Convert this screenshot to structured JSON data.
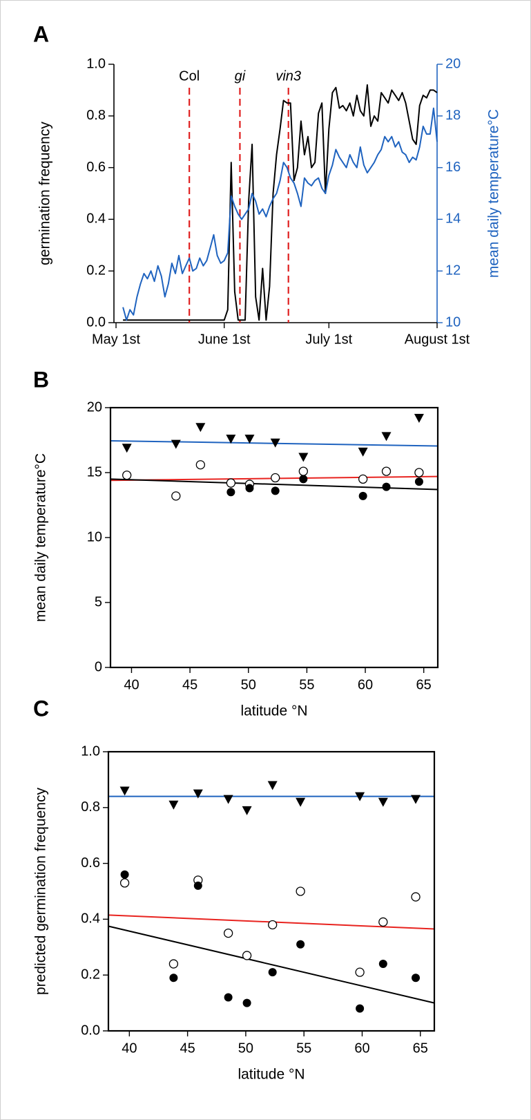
{
  "chart_data": [
    {
      "type": "line",
      "panel": "A",
      "ylabel": "germination frequency",
      "y2label": "mean daily temperature°C",
      "x": [
        2,
        3,
        4,
        5,
        6,
        7,
        8,
        9,
        10,
        11,
        12,
        13,
        14,
        15,
        16,
        17,
        18,
        19,
        20,
        21,
        22,
        23,
        24,
        25,
        26,
        27,
        28,
        29,
        30,
        31,
        32,
        33,
        34,
        35,
        36,
        37,
        38,
        39,
        40,
        41,
        42,
        43,
        44,
        45,
        46,
        47,
        48,
        49,
        50,
        51,
        52,
        53,
        54,
        55,
        56,
        57,
        58,
        59,
        60,
        61,
        62,
        63,
        64,
        65,
        66,
        67,
        68,
        69,
        70,
        71,
        72,
        73,
        74,
        75,
        76,
        77,
        78,
        79,
        80,
        81,
        82,
        83,
        84,
        85,
        86,
        87,
        88,
        89,
        90,
        91,
        92
      ],
      "xlim": [
        -0.6,
        92
      ],
      "xticks": [
        {
          "value": 0,
          "label": "May 1st"
        },
        {
          "value": 31,
          "label": "June 1st"
        },
        {
          "value": 61,
          "label": "July 1st"
        },
        {
          "value": 92,
          "label": "August 1st"
        }
      ],
      "ylim": [
        0,
        1
      ],
      "yticks": [
        {
          "value": 0,
          "label": "0.0"
        },
        {
          "value": 0.2,
          "label": "0.2"
        },
        {
          "value": 0.4,
          "label": "0.4"
        },
        {
          "value": 0.6,
          "label": "0.6"
        },
        {
          "value": 0.8,
          "label": "0.8"
        },
        {
          "value": 1,
          "label": "1.0"
        }
      ],
      "y2lim": [
        10,
        20
      ],
      "y2ticks": [
        10,
        12,
        14,
        16,
        18,
        20
      ],
      "series": [
        {
          "color": "#000000",
          "values": [
            0.01,
            0.01,
            0.01,
            0.01,
            0.01,
            0.01,
            0.01,
            0.01,
            0.01,
            0.01,
            0.01,
            0.01,
            0.01,
            0.01,
            0.01,
            0.01,
            0.01,
            0.01,
            0.01,
            0.01,
            0.01,
            0.01,
            0.01,
            0.01,
            0.01,
            0.01,
            0.01,
            0.01,
            0.01,
            0.01,
            0.05,
            0.62,
            0.12,
            0.01,
            0.01,
            0.01,
            0.47,
            0.69,
            0.1,
            0.01,
            0.21,
            0.01,
            0.14,
            0.5,
            0.65,
            0.75,
            0.86,
            0.85,
            0.85,
            0.55,
            0.6,
            0.78,
            0.65,
            0.72,
            0.6,
            0.62,
            0.81,
            0.85,
            0.5,
            0.75,
            0.89,
            0.91,
            0.83,
            0.84,
            0.82,
            0.85,
            0.8,
            0.88,
            0.82,
            0.8,
            0.92,
            0.76,
            0.8,
            0.78,
            0.89,
            0.87,
            0.85,
            0.9,
            0.88,
            0.86,
            0.89,
            0.85,
            0.78,
            0.71,
            0.69,
            0.84,
            0.88,
            0.87,
            0.9,
            0.9,
            0.89
          ]
        },
        {
          "color": "#1f63bf",
          "axis": "y2",
          "values": [
            10.6,
            10.1,
            10.5,
            10.3,
            11.0,
            11.5,
            11.9,
            11.7,
            12.0,
            11.6,
            12.2,
            11.8,
            11.0,
            11.5,
            12.3,
            11.9,
            12.6,
            11.9,
            12.2,
            12.5,
            12.0,
            12.1,
            12.5,
            12.2,
            12.4,
            12.9,
            13.4,
            12.6,
            12.3,
            12.4,
            12.7,
            14.9,
            14.5,
            14.2,
            14.0,
            14.2,
            14.4,
            15.0,
            14.7,
            14.2,
            14.4,
            14.1,
            14.5,
            14.8,
            15.0,
            15.5,
            16.2,
            16.0,
            15.6,
            15.4,
            15.0,
            14.5,
            15.6,
            15.4,
            15.3,
            15.5,
            15.6,
            15.2,
            15.0,
            15.7,
            16.1,
            16.7,
            16.4,
            16.2,
            16.0,
            16.5,
            16.2,
            16.0,
            16.8,
            16.1,
            15.8,
            16.0,
            16.2,
            16.5,
            16.7,
            17.2,
            17.0,
            17.2,
            16.8,
            17.0,
            16.6,
            16.5,
            16.2,
            16.4,
            16.3,
            16.8,
            17.6,
            17.3,
            17.3,
            18.3,
            17.0
          ]
        }
      ],
      "annotation_color": "#e02020",
      "annotations": [
        {
          "label": "Col",
          "x": 21
        },
        {
          "label": "gi",
          "x": 35.5,
          "style": "italic"
        },
        {
          "label": "vin3",
          "x": 49.4,
          "style": "italic"
        }
      ]
    },
    {
      "type": "scatter",
      "panel": "B",
      "xlabel": "latitude °N",
      "ylabel": "mean daily temperature°C",
      "x": [
        39.6,
        43.8,
        45.9,
        48.5,
        50.1,
        52.3,
        54.7,
        59.8,
        61.8,
        64.6
      ],
      "xlim": [
        38.2,
        66.2
      ],
      "xticks": [
        40,
        45,
        50,
        55,
        60,
        65
      ],
      "ylim": [
        0,
        20
      ],
      "yticks": [
        0,
        5,
        10,
        15,
        20
      ],
      "series": [
        {
          "marker": "triangle",
          "color": "#000000",
          "values": [
            16.9,
            17.2,
            18.5,
            17.6,
            17.6,
            17.3,
            16.2,
            16.6,
            17.8,
            19.2
          ]
        },
        {
          "marker": "open-circle",
          "color": "#000000",
          "values": [
            14.8,
            13.2,
            15.6,
            14.2,
            14.1,
            14.6,
            15.1,
            14.5,
            15.1,
            15.0
          ]
        },
        {
          "marker": "circle",
          "color": "#000000",
          "values": [
            null,
            null,
            null,
            13.5,
            13.8,
            13.6,
            14.5,
            13.2,
            13.9,
            14.3
          ]
        }
      ],
      "trend_lines": [
        {
          "color": "#1f63bf",
          "values": [
            17.45,
            17.05
          ]
        },
        {
          "color": "#e8231f",
          "values": [
            14.4,
            14.7
          ]
        },
        {
          "color": "#000000",
          "values": [
            14.5,
            13.7
          ]
        }
      ]
    },
    {
      "type": "scatter",
      "panel": "C",
      "xlabel": "latitude °N",
      "ylabel": "predicted germination frequency",
      "x": [
        39.6,
        43.8,
        45.9,
        48.5,
        50.1,
        52.3,
        54.7,
        59.8,
        61.8,
        64.6
      ],
      "xlim": [
        38.2,
        66.2
      ],
      "xticks": [
        40,
        45,
        50,
        55,
        60,
        65
      ],
      "ylim": [
        0,
        1
      ],
      "yticks": [
        {
          "value": 0,
          "label": "0.0"
        },
        {
          "value": 0.2,
          "label": "0.2"
        },
        {
          "value": 0.4,
          "label": "0.4"
        },
        {
          "value": 0.6,
          "label": "0.6"
        },
        {
          "value": 0.8,
          "label": "0.8"
        },
        {
          "value": 1,
          "label": "1.0"
        }
      ],
      "series": [
        {
          "marker": "triangle",
          "color": "#000000",
          "values": [
            0.86,
            0.81,
            0.85,
            0.83,
            0.79,
            0.88,
            0.82,
            0.84,
            0.82,
            0.83
          ]
        },
        {
          "marker": "open-circle",
          "color": "#000000",
          "values": [
            0.53,
            0.24,
            0.54,
            0.35,
            0.27,
            0.38,
            0.5,
            0.21,
            0.39,
            0.48
          ]
        },
        {
          "marker": "circle",
          "color": "#000000",
          "values": [
            0.56,
            0.19,
            0.52,
            0.12,
            0.1,
            0.21,
            0.31,
            0.08,
            0.24,
            0.19
          ]
        }
      ],
      "trend_lines": [
        {
          "color": "#1f63bf",
          "values": [
            0.84,
            0.84
          ]
        },
        {
          "color": "#e8231f",
          "values": [
            0.415,
            0.365
          ]
        },
        {
          "color": "#000000",
          "values": [
            0.375,
            0.1
          ]
        }
      ]
    }
  ]
}
